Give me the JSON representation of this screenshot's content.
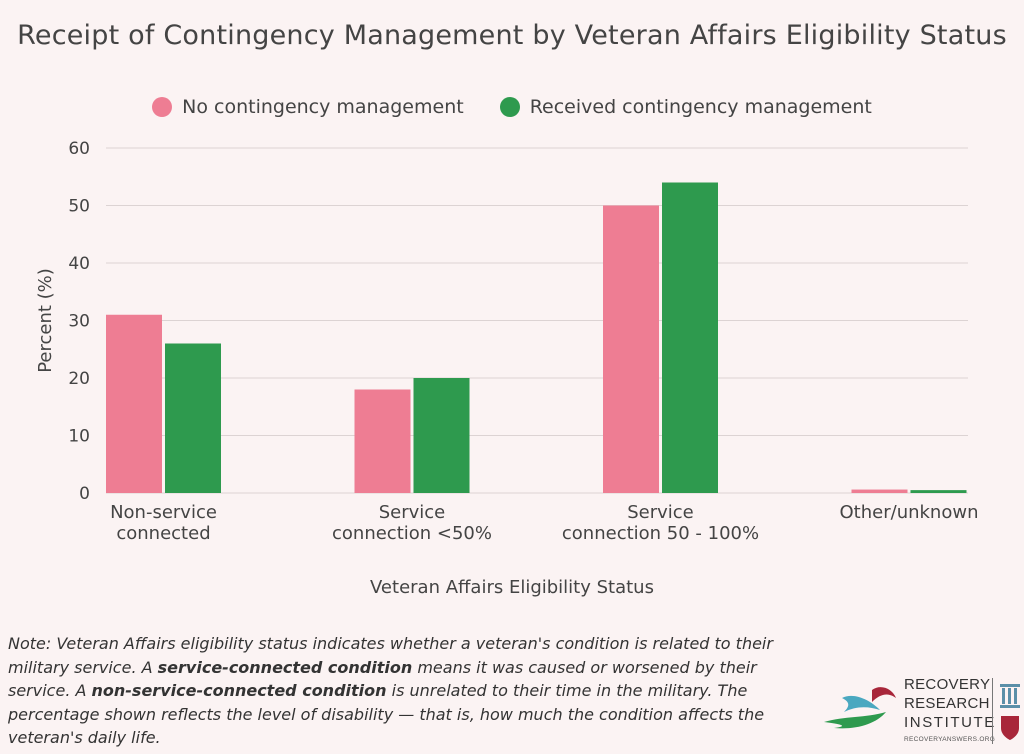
{
  "chart_data": {
    "type": "bar",
    "title": "Receipt of Contingency Management by Veteran Affairs Eligibility Status",
    "xlabel": "Veteran Affairs Eligibility Status",
    "ylabel": "Percent (%)",
    "ylim": [
      0,
      60
    ],
    "yticks": [
      "0",
      "10",
      "20",
      "30",
      "40",
      "50",
      "60"
    ],
    "categories": [
      [
        "Non-service",
        "connected"
      ],
      [
        "Service",
        "connection <50%"
      ],
      [
        "Service",
        "connection 50 - 100%"
      ],
      [
        "Other/unknown"
      ]
    ],
    "series": [
      {
        "name": "No contingency management",
        "color": "#ee7d93",
        "values": [
          31,
          18,
          50,
          0.6
        ]
      },
      {
        "name": "Received contingency management",
        "color": "#2e9a4e",
        "values": [
          26,
          20,
          54,
          0.5
        ]
      }
    ],
    "grid": true,
    "legend_position": "top-center"
  },
  "note": {
    "prefix": "Note: Veteran Affairs eligibility status indicates whether a veteran's condition is related to their military service. A ",
    "bold1": "service-connected condition",
    "mid1": " means it was caused or worsened by their service. A ",
    "bold2": "non-service-connected condition",
    "mid2": " is unrelated to their time in the military. The percentage shown reflects the level of disability — that is, how much the condition affects the veteran's daily life."
  },
  "logo": {
    "line1": "RECOVERY",
    "line2": "RESEARCH",
    "line3": "INSTITUTE",
    "url": "RECOVERYANSWERS.ORG"
  }
}
